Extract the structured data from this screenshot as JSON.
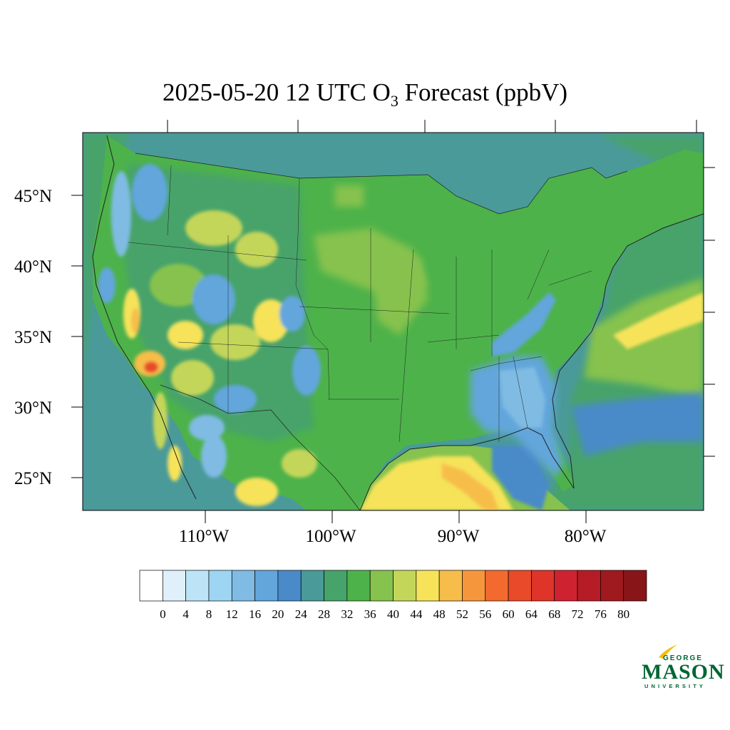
{
  "title": {
    "prefix": "2025-05-20 12 UTC O",
    "subscript": "3",
    "suffix": " Forecast (ppbV)"
  },
  "axes": {
    "lat_labels": [
      "45°N",
      "40°N",
      "35°N",
      "30°N",
      "25°N"
    ],
    "lon_labels": [
      "110°W",
      "100°W",
      "90°W",
      "80°W"
    ]
  },
  "colorbar": {
    "ticks": [
      "0",
      "4",
      "8",
      "12",
      "16",
      "20",
      "24",
      "28",
      "32",
      "36",
      "40",
      "44",
      "48",
      "52",
      "56",
      "60",
      "64",
      "68",
      "72",
      "76",
      "80"
    ],
    "colors": [
      "#ffffff",
      "#dff0fa",
      "#bde3f7",
      "#9dd5f2",
      "#7fbbe3",
      "#62a6dc",
      "#4a8ac8",
      "#4a9a9a",
      "#46a36a",
      "#4db24a",
      "#86c24e",
      "#c4d65a",
      "#f6e35a",
      "#f7bd4a",
      "#f6963c",
      "#f36a2e",
      "#e94a2a",
      "#de3429",
      "#cf2230",
      "#b61c25",
      "#9f1a1f",
      "#881518"
    ]
  },
  "map_colors": {
    "ocean": "#4a9a9a",
    "land": "#4db24a",
    "land_light": "#86c24e",
    "mid": "#46a36a",
    "blue": "#62a6dc",
    "lightblue": "#7fbbe3",
    "yellowgreen": "#c4d65a",
    "yellow": "#f6e35a",
    "orange": "#f7bd4a",
    "red": "#e94a2a"
  },
  "logo": {
    "line1": "GEORGE",
    "line2": "MASON",
    "line3": "UNIVERSITY"
  }
}
